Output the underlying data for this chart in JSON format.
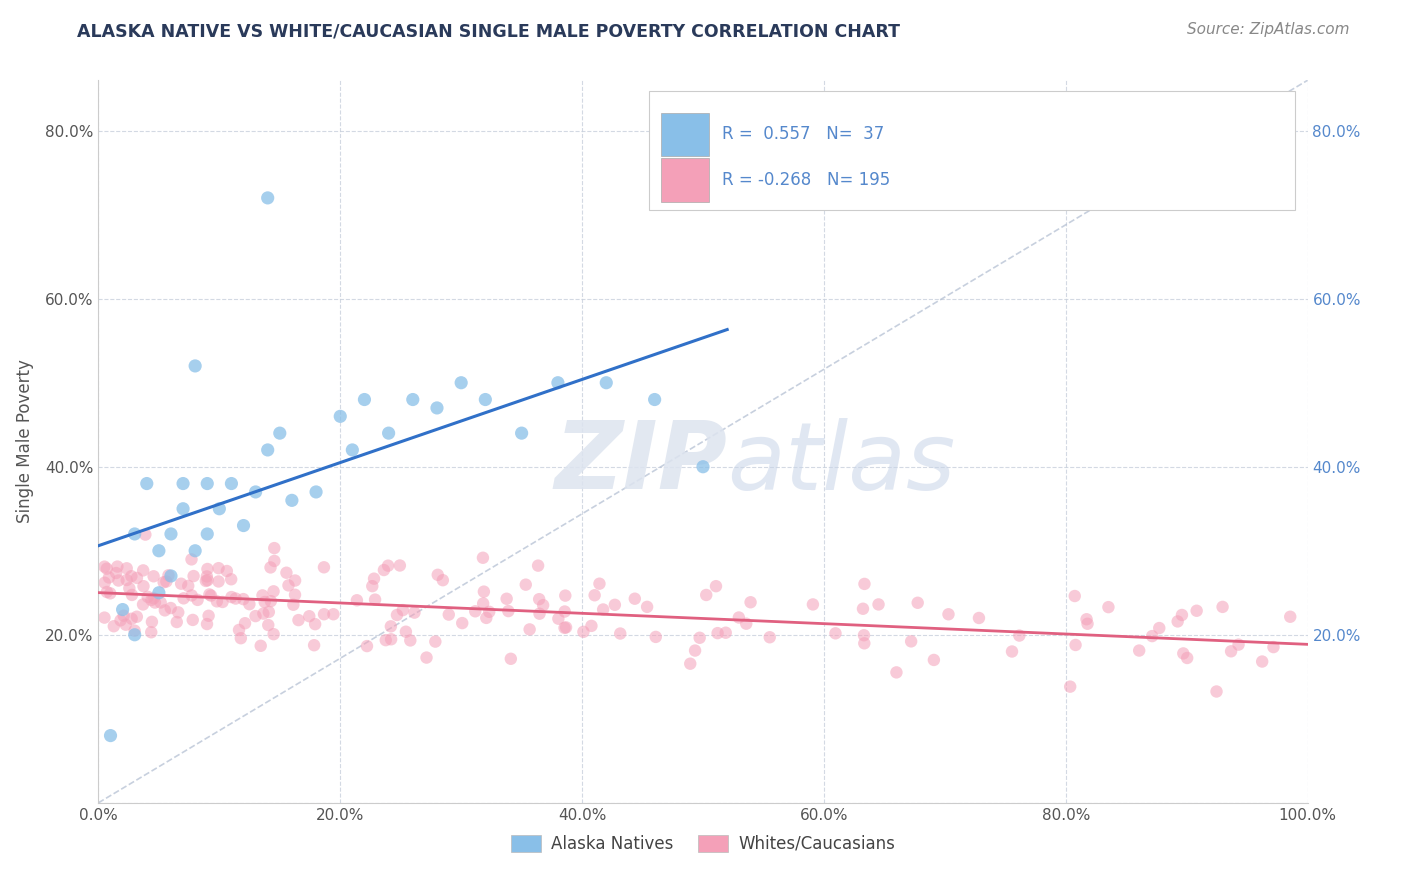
{
  "title": "ALASKA NATIVE VS WHITE/CAUCASIAN SINGLE MALE POVERTY CORRELATION CHART",
  "source": "Source: ZipAtlas.com",
  "ylabel": "Single Male Poverty",
  "blue_R": 0.557,
  "blue_N": 37,
  "pink_R": -0.268,
  "pink_N": 195,
  "blue_color": "#89bfe8",
  "pink_color": "#f4a0b8",
  "blue_line_color": "#3070c8",
  "pink_line_color": "#e06080",
  "dash_line_color": "#b0bcd0",
  "legend_label_blue": "Alaska Natives",
  "legend_label_pink": "Whites/Caucasians",
  "watermark_zip": "ZIP",
  "watermark_atlas": "atlas",
  "background_color": "#ffffff",
  "grid_color": "#c8d0dc",
  "xlim": [
    0.0,
    1.0
  ],
  "ylim": [
    0.0,
    0.86
  ],
  "yticks": [
    0.0,
    0.2,
    0.4,
    0.6,
    0.8
  ],
  "xticks": [
    0.0,
    0.2,
    0.4,
    0.6,
    0.8,
    1.0
  ],
  "right_tick_color": "#5588cc",
  "title_color": "#2a3a5a",
  "source_color": "#888888",
  "axis_label_color": "#555555",
  "tick_label_color": "#555555"
}
